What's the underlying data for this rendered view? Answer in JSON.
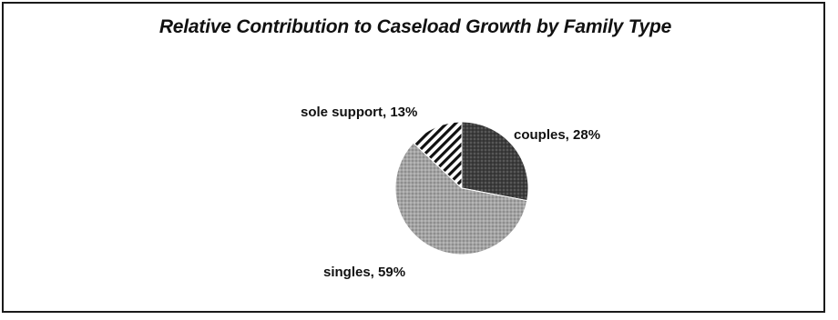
{
  "chart_data": {
    "type": "pie",
    "title": "Relative Contribution to Caseload Growth by Family Type",
    "slices": [
      {
        "label": "couples",
        "value": 28,
        "display": "couples, 28%",
        "fill": "dark-dotted",
        "color": "#4a4a4a"
      },
      {
        "label": "singles",
        "value": 59,
        "display": "singles, 59%",
        "fill": "gray-dotted",
        "color": "#9c9c9c"
      },
      {
        "label": "sole support",
        "value": 13,
        "display": "sole support, 13%",
        "fill": "diagonal-stripes",
        "color": "#1a1a1a"
      }
    ],
    "start_angle_deg": 0,
    "direction": "clockwise",
    "legend": "none"
  }
}
